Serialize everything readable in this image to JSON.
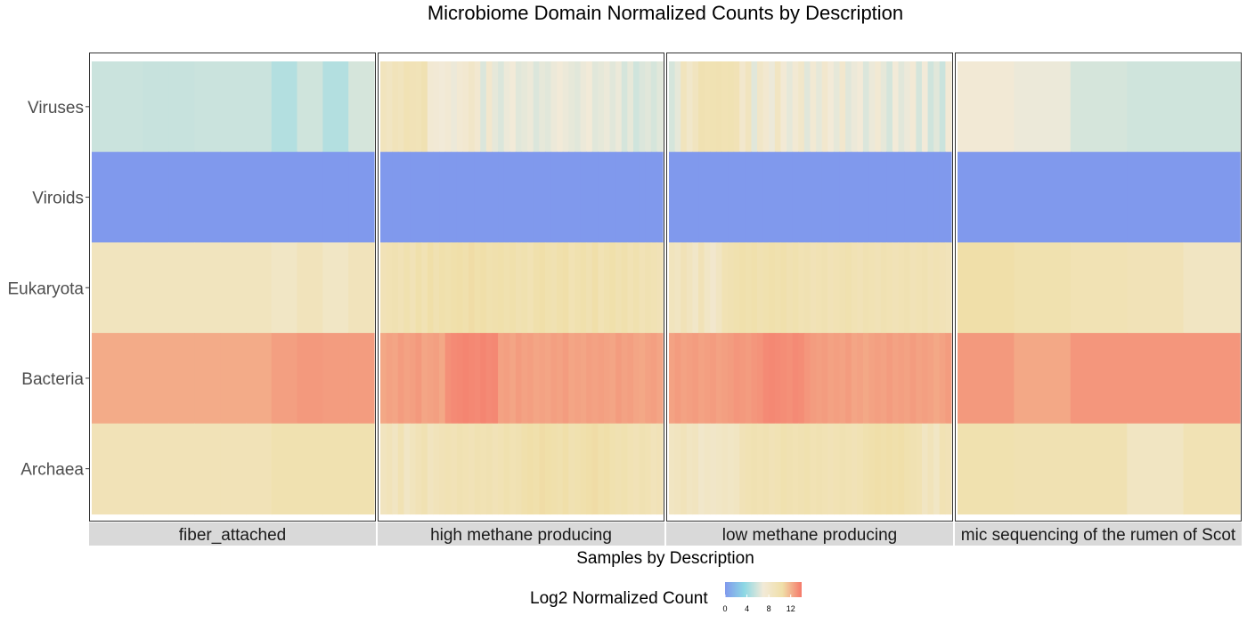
{
  "chart_data": {
    "type": "heatmap",
    "title": "Microbiome Domain Normalized Counts by Description",
    "xlabel": "Samples by Description",
    "ylabel": "",
    "rows": [
      "Viruses",
      "Viroids",
      "Eukaryota",
      "Bacteria",
      "Archaea"
    ],
    "legend": {
      "title": "Log2 Normalized Count",
      "ticks": [
        0,
        4,
        8,
        12
      ],
      "range": [
        0,
        14
      ],
      "colors": [
        "#8099ed",
        "#8dd8e4",
        "#f2ead8",
        "#f0dfa8",
        "#f5796a"
      ]
    },
    "facets": [
      {
        "label": "fiber_attached",
        "samples": 11,
        "values": {
          "Viruses": [
            5.6,
            5.6,
            5.5,
            5.5,
            5.6,
            5.6,
            5.6,
            4.8,
            5.8,
            4.8,
            6.0
          ],
          "Viroids": [
            0,
            0,
            0,
            0,
            0,
            0,
            0,
            0,
            0,
            0,
            0
          ],
          "Eukaryota": [
            8.9,
            8.9,
            8.9,
            8.9,
            8.9,
            8.9,
            8.9,
            8.4,
            9.1,
            8.4,
            9.1
          ],
          "Bacteria": [
            12.3,
            12.3,
            12.3,
            12.3,
            12.3,
            12.3,
            12.3,
            12.7,
            12.9,
            12.8,
            12.8
          ],
          "Archaea": [
            9.4,
            9.4,
            9.4,
            9.4,
            9.4,
            9.4,
            9.4,
            9.9,
            9.9,
            9.9,
            9.9
          ]
        }
      },
      {
        "label": "high methane producing",
        "samples": 48,
        "values": {
          "Viruses": [
            9.0,
            8.6,
            9.2,
            9.0,
            9.6,
            9.4,
            9.3,
            9.8,
            7.4,
            7.2,
            7.0,
            7.3,
            6.8,
            7.4,
            7.6,
            8.2,
            7.6,
            6.2,
            7.8,
            6.6,
            6.2,
            6.8,
            7.0,
            6.4,
            6.6,
            6.8,
            6.2,
            6.6,
            6.4,
            6.8,
            7.0,
            6.8,
            6.6,
            6.4,
            6.8,
            7.0,
            6.4,
            6.6,
            6.8,
            6.4,
            6.8,
            6.0,
            6.6,
            5.8,
            6.2,
            6.4,
            6.0,
            6.4
          ],
          "Viroids": [
            0,
            0,
            0,
            0,
            0,
            0,
            0,
            0,
            0,
            0,
            0,
            0,
            0,
            0,
            0,
            0,
            0,
            0,
            0,
            0,
            0,
            0,
            0,
            0,
            0,
            0,
            0,
            0,
            0,
            0,
            0,
            0,
            0,
            0,
            0,
            0,
            0,
            0,
            0,
            0,
            0,
            0,
            0,
            0,
            0,
            0,
            0,
            0
          ],
          "Eukaryota": [
            9.4,
            9.6,
            9.8,
            9.5,
            10.0,
            9.4,
            10.2,
            9.6,
            10.4,
            9.8,
            10.2,
            10.0,
            10.3,
            10.4,
            10.1,
            10.6,
            10.2,
            10.4,
            10.0,
            10.1,
            10.3,
            10.0,
            10.2,
            9.8,
            10.0,
            9.6,
            10.2,
            10.4,
            10.0,
            9.8,
            10.2,
            10.4,
            9.6,
            10.0,
            10.2,
            9.8,
            10.4,
            9.6,
            10.0,
            10.3,
            9.8,
            10.1,
            9.6,
            10.0,
            9.5,
            9.8,
            9.6,
            9.4
          ],
          "Bacteria": [
            12.4,
            12.6,
            12.5,
            12.8,
            12.6,
            12.7,
            12.9,
            12.5,
            12.6,
            12.7,
            12.4,
            13.2,
            13.4,
            13.5,
            13.6,
            13.5,
            13.4,
            13.6,
            13.4,
            13.5,
            12.6,
            12.7,
            12.5,
            12.8,
            12.6,
            12.7,
            12.5,
            12.6,
            12.5,
            12.7,
            12.6,
            12.8,
            12.5,
            12.6,
            12.5,
            12.7,
            12.6,
            12.7,
            12.6,
            12.5,
            12.8,
            12.6,
            12.7,
            12.5,
            12.4,
            12.6,
            12.7,
            12.5
          ],
          "Archaea": [
            8.8,
            9.2,
            8.6,
            9.6,
            8.4,
            9.0,
            9.4,
            9.8,
            8.8,
            9.2,
            9.4,
            9.6,
            9.4,
            9.8,
            9.6,
            9.4,
            9.8,
            9.6,
            9.8,
            9.4,
            9.6,
            10.0,
            9.6,
            9.8,
            10.2,
            10.4,
            10.2,
            10.6,
            10.4,
            10.2,
            10.0,
            10.4,
            9.8,
            10.0,
            10.2,
            10.4,
            10.6,
            10.2,
            10.4,
            10.0,
            9.8,
            10.0,
            9.6,
            9.4,
            9.8,
            9.6,
            9.2,
            9.4
          ]
        }
      },
      {
        "label": "low methane producing",
        "samples": 48,
        "values": {
          "Viruses": [
            6.0,
            6.6,
            9.0,
            8.0,
            8.8,
            9.8,
            9.6,
            9.7,
            9.8,
            9.6,
            9.7,
            9.5,
            7.8,
            8.8,
            6.4,
            8.2,
            7.6,
            6.8,
            8.6,
            7.2,
            6.6,
            7.4,
            8.0,
            6.4,
            7.4,
            6.6,
            7.8,
            7.0,
            6.6,
            7.8,
            6.4,
            6.8,
            7.0,
            6.2,
            6.8,
            7.4,
            6.6,
            6.0,
            7.0,
            6.4,
            6.8,
            7.2,
            6.0,
            7.0,
            5.8,
            6.4,
            5.6,
            7.2
          ],
          "Viroids": [
            0,
            0,
            0,
            0,
            0,
            0,
            0,
            0,
            0,
            0,
            0,
            0,
            0,
            0,
            0,
            0,
            0,
            0,
            0,
            0,
            0,
            0,
            0,
            0,
            0,
            0,
            0,
            0,
            0,
            0,
            0,
            0,
            0,
            0,
            0,
            0,
            0,
            0,
            0,
            0,
            0,
            0,
            0,
            0,
            0,
            0,
            0,
            0
          ],
          "Eukaryota": [
            9.0,
            8.6,
            9.4,
            8.8,
            8.2,
            9.4,
            8.4,
            7.8,
            8.6,
            9.6,
            9.8,
            10.0,
            10.2,
            10.0,
            10.2,
            9.8,
            10.0,
            10.2,
            10.0,
            10.2,
            9.8,
            10.0,
            9.6,
            9.8,
            9.4,
            9.6,
            9.8,
            9.4,
            9.6,
            9.8,
            10.0,
            9.6,
            9.4,
            9.8,
            9.6,
            9.4,
            9.8,
            9.6,
            9.4,
            9.6,
            9.8,
            9.4,
            9.6,
            9.8,
            9.4,
            9.6,
            9.4,
            9.2
          ],
          "Bacteria": [
            12.6,
            12.8,
            12.6,
            12.7,
            12.8,
            12.6,
            12.7,
            12.8,
            12.6,
            12.7,
            12.8,
            13.0,
            12.9,
            12.8,
            13.0,
            13.1,
            13.4,
            13.5,
            13.4,
            13.3,
            13.2,
            13.4,
            13.3,
            13.0,
            12.8,
            12.7,
            12.8,
            12.6,
            12.7,
            12.6,
            12.8,
            12.5,
            12.6,
            12.4,
            12.6,
            12.7,
            12.6,
            12.8,
            12.6,
            12.7,
            12.6,
            12.8,
            12.6,
            12.7,
            12.6,
            12.4,
            12.6,
            12.8
          ],
          "Archaea": [
            8.6,
            8.8,
            9.2,
            8.6,
            8.8,
            8.0,
            8.4,
            8.2,
            8.4,
            8.6,
            8.4,
            8.6,
            9.4,
            9.6,
            9.8,
            9.6,
            9.8,
            9.4,
            9.6,
            10.0,
            9.8,
            9.6,
            9.8,
            10.0,
            9.6,
            9.8,
            9.6,
            9.4,
            9.6,
            9.8,
            9.6,
            9.4,
            9.6,
            10.0,
            10.2,
            10.4,
            10.2,
            10.4,
            10.2,
            10.4,
            10.0,
            9.8,
            9.6,
            8.6,
            9.2,
            8.4,
            9.6,
            9.4
          ]
        }
      },
      {
        "label": "mic sequencing of the rumen of Scot",
        "samples": 5,
        "values": {
          "Viruses": [
            7.2,
            6.8,
            6.0,
            5.8,
            5.8
          ],
          "Viroids": [
            0,
            0,
            0,
            0,
            0
          ],
          "Eukaryota": [
            10.4,
            10.0,
            9.6,
            9.4,
            8.6
          ],
          "Bacteria": [
            12.9,
            12.4,
            13.0,
            13.0,
            13.0
          ],
          "Archaea": [
            10.0,
            9.8,
            9.8,
            8.6,
            9.6
          ]
        }
      }
    ]
  }
}
